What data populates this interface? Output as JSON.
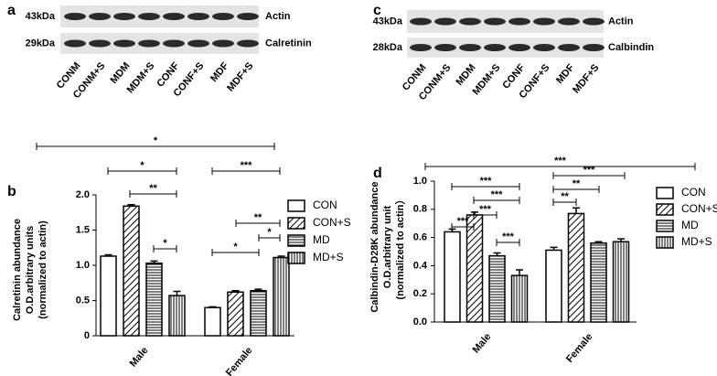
{
  "panels": [
    {
      "letter": "a",
      "blots": [
        {
          "size": "43kDa",
          "protein": "Actin"
        },
        {
          "size": "29kDa",
          "protein": "Calretinin"
        }
      ],
      "lanes": [
        "CONM",
        "CONM+S",
        "MDM",
        "MDM+S",
        "CONF",
        "CONF+S",
        "MDF",
        "MDF+S"
      ]
    },
    {
      "letter": "c",
      "blots": [
        {
          "size": "43kDa",
          "protein": "Actin"
        },
        {
          "size": "28kDa",
          "protein": "Calbindin"
        }
      ],
      "lanes": [
        "CONM",
        "CONM+S",
        "MDM",
        "MDM+S",
        "CONF",
        "CONF+S",
        "MDF",
        "MDF+S"
      ]
    }
  ],
  "chart_data": [
    {
      "type": "bar",
      "letter": "b",
      "ylabel": [
        "Calretinin abundance",
        "O.D.arbitrary units",
        "(normalized to actin)"
      ],
      "categories": [
        "Male",
        "Female"
      ],
      "series": [
        {
          "name": "CON",
          "color": "#000000",
          "pattern": "none",
          "values": [
            1.13,
            0.4
          ],
          "errors": [
            0.02,
            0.01
          ]
        },
        {
          "name": "CON+S",
          "color": "#000000",
          "pattern": "diagonal",
          "values": [
            1.84,
            0.62
          ],
          "errors": [
            0.02,
            0.02
          ]
        },
        {
          "name": "MD",
          "color": "#000000",
          "pattern": "horizontal",
          "values": [
            1.03,
            0.64
          ],
          "errors": [
            0.03,
            0.02
          ]
        },
        {
          "name": "MD+S",
          "color": "#000000",
          "pattern": "vertical",
          "values": [
            0.57,
            1.11
          ],
          "errors": [
            0.06,
            0.02
          ]
        }
      ],
      "ylim": [
        0,
        2.0
      ],
      "yticks": [
        0,
        0.5,
        {
          "value": 1,
          "label": "1.0"
        },
        1.5,
        {
          "value": 2,
          "label": "2.0"
        }
      ],
      "annotations": [
        "*",
        "*",
        "**",
        "*",
        "***",
        "**",
        "*",
        "*"
      ]
    },
    {
      "type": "bar",
      "letter": "d",
      "ylabel": [
        "Calbindin-D28K abundance",
        "O.D.arbitrary unit",
        "(normalized to actin）"
      ],
      "categories": [
        "Male",
        "Female"
      ],
      "series": [
        {
          "name": "CON",
          "color": "#000000",
          "pattern": "none",
          "values": [
            0.64,
            0.51
          ],
          "errors": [
            0.02,
            0.02
          ]
        },
        {
          "name": "CON+S",
          "color": "#000000",
          "pattern": "diagonal",
          "values": [
            0.76,
            0.77
          ],
          "errors": [
            0.02,
            0.04
          ]
        },
        {
          "name": "MD",
          "color": "#000000",
          "pattern": "horizontal",
          "values": [
            0.47,
            0.56
          ],
          "errors": [
            0.02,
            0.01
          ]
        },
        {
          "name": "MD+S",
          "color": "#000000",
          "pattern": "vertical",
          "values": [
            0.33,
            0.57
          ],
          "errors": [
            0.04,
            0.02
          ]
        }
      ],
      "ylim": [
        0,
        1.0
      ],
      "yticks": [
        {
          "value": 0,
          "label": "0.0"
        },
        0.2,
        0.4,
        0.6,
        0.8,
        {
          "value": 1,
          "label": "1.0"
        }
      ],
      "annotations": [
        "***",
        "***",
        "***",
        "***",
        "***",
        "***",
        "***",
        "**",
        "**"
      ]
    }
  ]
}
